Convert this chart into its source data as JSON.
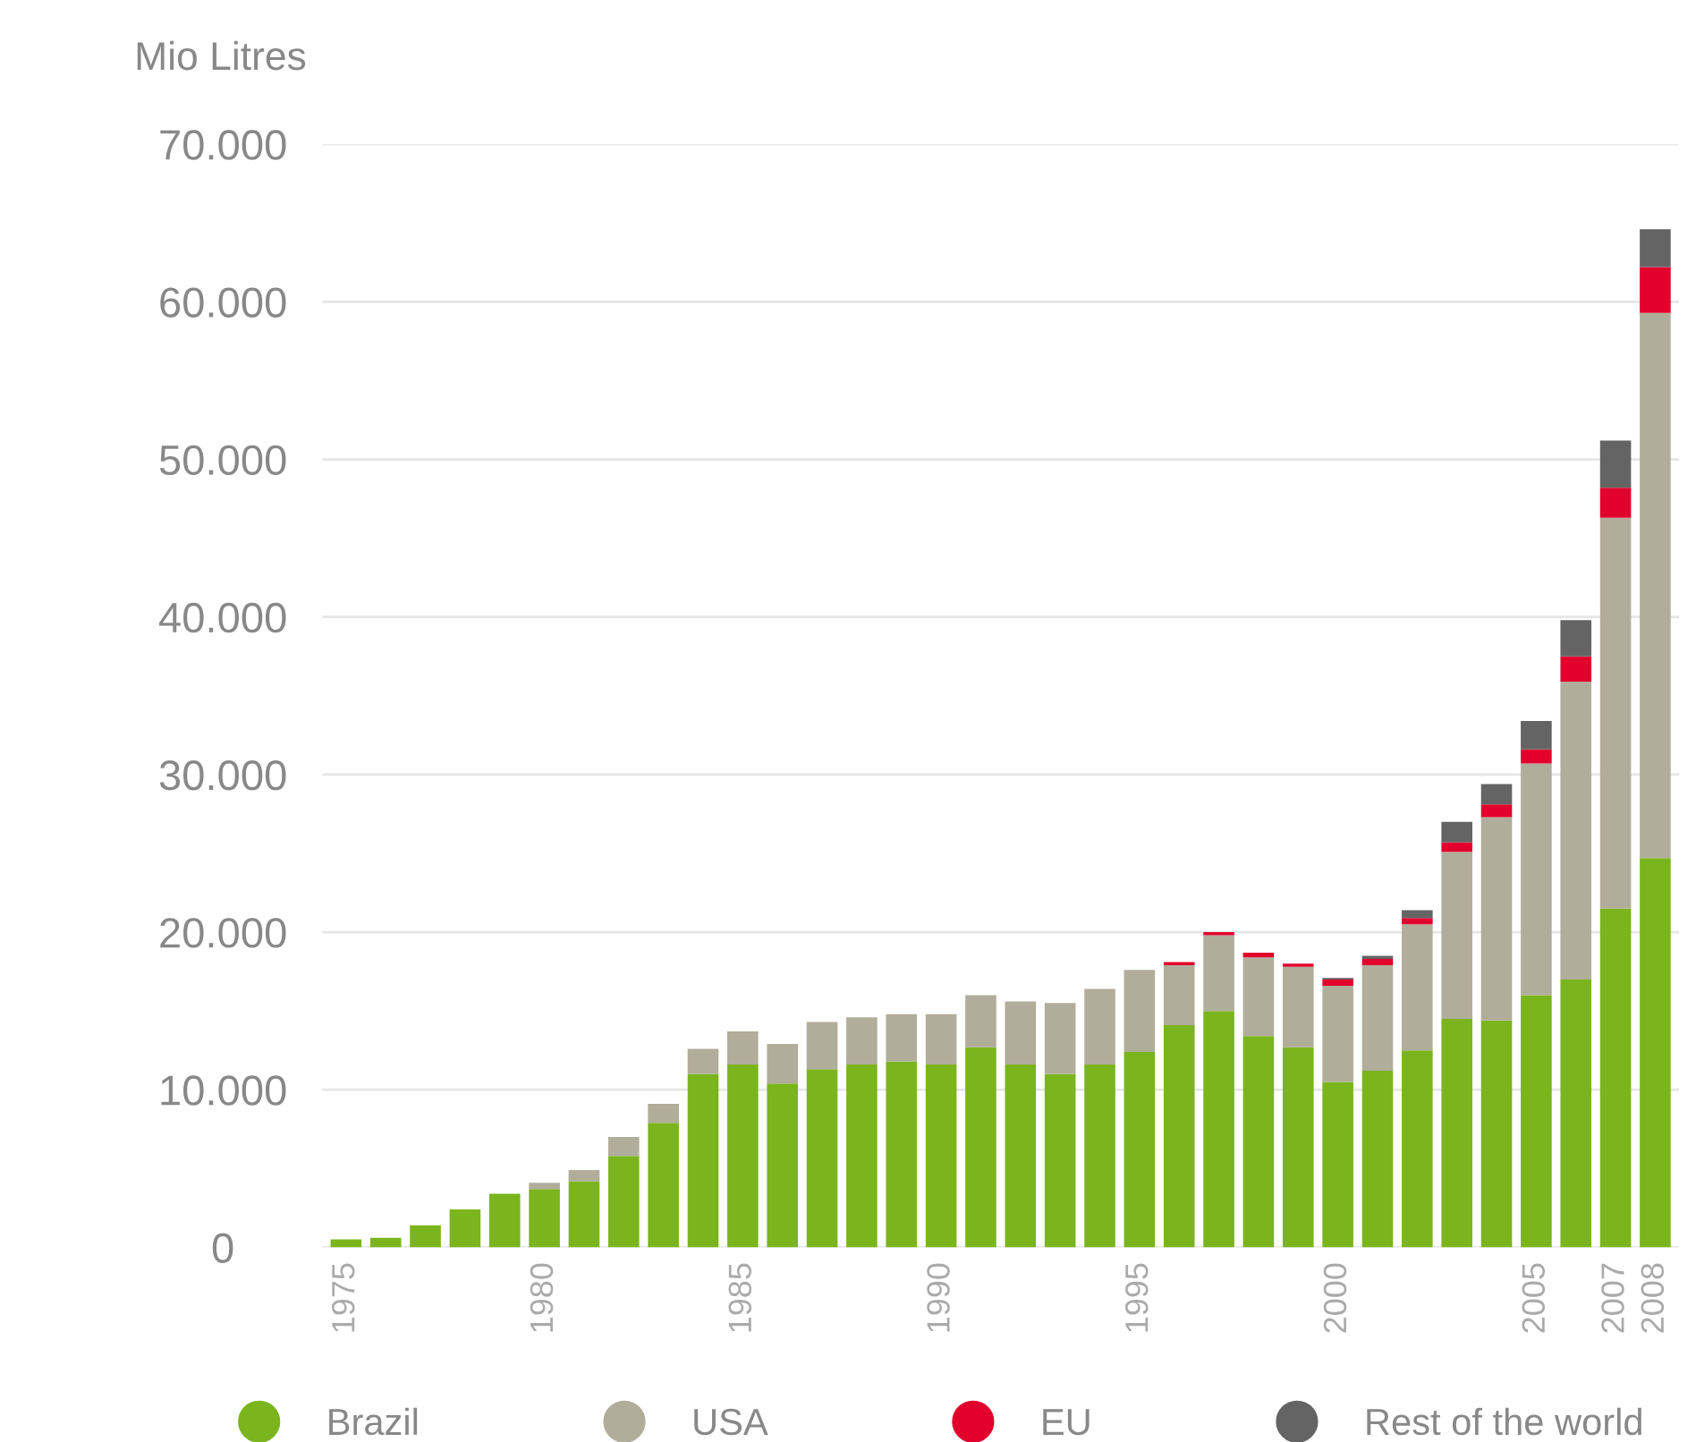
{
  "chart_data": {
    "type": "bar",
    "stacked": true,
    "ylabel": "Mio Litres",
    "categories": [
      "1975",
      null,
      null,
      null,
      null,
      "1980",
      null,
      null,
      null,
      null,
      "1985",
      null,
      null,
      null,
      null,
      "1990",
      null,
      null,
      null,
      null,
      "1995",
      null,
      null,
      null,
      null,
      "2000",
      null,
      null,
      null,
      null,
      "2005",
      null,
      "2007",
      "2008"
    ],
    "series": [
      {
        "name": "Brazil",
        "color": "#7ab51d",
        "values": [
          500,
          600,
          1400,
          2400,
          3400,
          3700,
          4200,
          5800,
          7900,
          11000,
          11600,
          10400,
          11300,
          11600,
          11800,
          11600,
          12700,
          11600,
          11000,
          11600,
          12400,
          14100,
          15000,
          13400,
          12700,
          10500,
          11200,
          12500,
          14500,
          14400,
          16000,
          17000,
          21500,
          24700
        ]
      },
      {
        "name": "USA",
        "color": "#b1ad9b",
        "values": [
          null,
          null,
          null,
          null,
          null,
          400,
          700,
          1200,
          1200,
          1600,
          2100,
          2500,
          3000,
          3000,
          3000,
          3200,
          3300,
          4000,
          4500,
          4800,
          5200,
          3800,
          4800,
          5000,
          5100,
          6100,
          6700,
          8000,
          10600,
          12900,
          14700,
          18900,
          24800,
          34600
        ]
      },
      {
        "name": "EU",
        "color": "#e2002d",
        "values": [
          null,
          null,
          null,
          null,
          null,
          null,
          null,
          null,
          null,
          null,
          null,
          null,
          null,
          null,
          null,
          null,
          null,
          null,
          null,
          null,
          null,
          200,
          200,
          300,
          200,
          400,
          400,
          400,
          600,
          800,
          900,
          1600,
          1900,
          2900
        ]
      },
      {
        "name": "Rest of the world",
        "color": "#646464",
        "values": [
          null,
          null,
          null,
          null,
          null,
          null,
          null,
          null,
          null,
          null,
          null,
          null,
          null,
          null,
          null,
          null,
          null,
          null,
          null,
          null,
          null,
          null,
          null,
          null,
          null,
          100,
          200,
          500,
          1300,
          1300,
          1800,
          2300,
          3000,
          2400
        ]
      }
    ],
    "ylim": [
      0,
      70000
    ],
    "yticks": [
      0,
      {
        "value": 10000,
        "label": "10.000"
      },
      {
        "value": 20000,
        "label": "20.000"
      },
      {
        "value": 30000,
        "label": "30.000"
      },
      {
        "value": 40000,
        "label": "40.000"
      },
      {
        "value": 50000,
        "label": "50.000"
      },
      {
        "value": 60000,
        "label": "60.000"
      },
      {
        "value": 70000,
        "label": "70.000"
      }
    ],
    "grid": "y",
    "legend": "bottom",
    "marker": "circle"
  }
}
